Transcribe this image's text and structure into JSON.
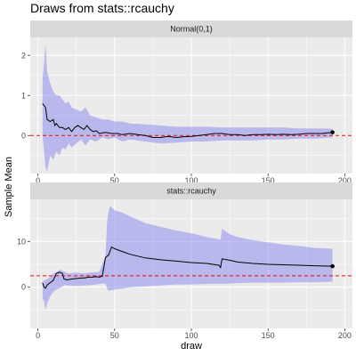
{
  "chart_data": {
    "type": "line",
    "title": "Draws from stats::rcauchy",
    "xlabel": "draw",
    "ylabel": "Sample Mean",
    "xlim": [
      -5,
      205
    ],
    "xticks": [
      0,
      50,
      100,
      150,
      200
    ],
    "colors": {
      "band": "#7b7bef",
      "line": "#000000",
      "reference": "#ff0000",
      "panel": "#ebebeb",
      "grid": "#ffffff",
      "strip": "#d9d9d9"
    },
    "panels": [
      {
        "strip": "Normal(0,1)",
        "ylim": [
          -0.95,
          2.45
        ],
        "yticks": [
          0,
          1,
          2
        ],
        "reference_y": 0,
        "band_upper": [
          [
            3,
            1.4
          ],
          [
            4,
            1.8
          ],
          [
            5,
            2.3
          ],
          [
            6,
            1.6
          ],
          [
            8,
            1.3
          ],
          [
            10,
            1.1
          ],
          [
            12,
            1.0
          ],
          [
            14,
            1.0
          ],
          [
            16,
            0.9
          ],
          [
            18,
            0.8
          ],
          [
            20,
            0.85
          ],
          [
            22,
            0.7
          ],
          [
            25,
            0.65
          ],
          [
            28,
            0.6
          ],
          [
            31,
            0.7
          ],
          [
            34,
            0.5
          ],
          [
            38,
            0.45
          ],
          [
            42,
            0.4
          ],
          [
            46,
            0.4
          ],
          [
            50,
            0.35
          ],
          [
            55,
            0.35
          ],
          [
            60,
            0.3
          ],
          [
            70,
            0.28
          ],
          [
            80,
            0.25
          ],
          [
            90,
            0.22
          ],
          [
            100,
            0.22
          ],
          [
            110,
            0.22
          ],
          [
            120,
            0.2
          ],
          [
            130,
            0.2
          ],
          [
            140,
            0.2
          ],
          [
            150,
            0.2
          ],
          [
            160,
            0.2
          ],
          [
            170,
            0.18
          ],
          [
            180,
            0.18
          ],
          [
            192,
            0.17
          ]
        ],
        "band_lower": [
          [
            3,
            0.0
          ],
          [
            4,
            -0.4
          ],
          [
            5,
            -0.8
          ],
          [
            6,
            -0.9
          ],
          [
            8,
            -0.5
          ],
          [
            10,
            -0.6
          ],
          [
            12,
            -0.4
          ],
          [
            14,
            -0.5
          ],
          [
            16,
            -0.3
          ],
          [
            18,
            -0.35
          ],
          [
            20,
            -0.2
          ],
          [
            22,
            -0.3
          ],
          [
            25,
            -0.2
          ],
          [
            28,
            -0.1
          ],
          [
            31,
            -0.25
          ],
          [
            34,
            -0.1
          ],
          [
            38,
            -0.15
          ],
          [
            42,
            -0.05
          ],
          [
            46,
            -0.1
          ],
          [
            50,
            -0.05
          ],
          [
            55,
            -0.15
          ],
          [
            60,
            -0.1
          ],
          [
            70,
            -0.15
          ],
          [
            80,
            -0.2
          ],
          [
            90,
            -0.18
          ],
          [
            100,
            -0.15
          ],
          [
            110,
            -0.15
          ],
          [
            120,
            -0.12
          ],
          [
            130,
            -0.12
          ],
          [
            140,
            -0.12
          ],
          [
            150,
            -0.1
          ],
          [
            160,
            -0.1
          ],
          [
            170,
            -0.08
          ],
          [
            180,
            -0.08
          ],
          [
            192,
            -0.05
          ]
        ],
        "mean_line": [
          [
            3,
            0.8
          ],
          [
            4,
            0.75
          ],
          [
            5,
            0.7
          ],
          [
            6,
            0.4
          ],
          [
            8,
            0.35
          ],
          [
            10,
            0.4
          ],
          [
            11,
            0.25
          ],
          [
            12,
            0.3
          ],
          [
            14,
            0.2
          ],
          [
            16,
            0.2
          ],
          [
            18,
            0.15
          ],
          [
            20,
            0.2
          ],
          [
            22,
            0.1
          ],
          [
            24,
            0.2
          ],
          [
            26,
            0.25
          ],
          [
            28,
            0.2
          ],
          [
            30,
            0.15
          ],
          [
            32,
            0.25
          ],
          [
            34,
            0.15
          ],
          [
            36,
            0.1
          ],
          [
            38,
            0.12
          ],
          [
            40,
            0.05
          ],
          [
            44,
            0.08
          ],
          [
            48,
            0.05
          ],
          [
            52,
            0.05
          ],
          [
            55,
            0.02
          ],
          [
            60,
            0.05
          ],
          [
            65,
            0.02
          ],
          [
            70,
            0.0
          ],
          [
            75,
            -0.05
          ],
          [
            80,
            -0.05
          ],
          [
            85,
            -0.02
          ],
          [
            90,
            -0.05
          ],
          [
            95,
            -0.03
          ],
          [
            100,
            -0.02
          ],
          [
            105,
            0.0
          ],
          [
            110,
            0.02
          ],
          [
            115,
            0.05
          ],
          [
            120,
            0.05
          ],
          [
            125,
            0.02
          ],
          [
            130,
            0.02
          ],
          [
            135,
            0.0
          ],
          [
            140,
            0.02
          ],
          [
            145,
            0.02
          ],
          [
            150,
            0.03
          ],
          [
            155,
            0.02
          ],
          [
            160,
            0.03
          ],
          [
            165,
            0.02
          ],
          [
            170,
            0.03
          ],
          [
            175,
            0.05
          ],
          [
            180,
            0.05
          ],
          [
            185,
            0.05
          ],
          [
            192,
            0.08
          ]
        ],
        "end_point": [
          192,
          0.08
        ]
      },
      {
        "strip": "stats::rcauchy",
        "ylim": [
          -9,
          19.2
        ],
        "yticks": [
          0,
          10
        ],
        "reference_y": 2.5,
        "band_upper": [
          [
            3,
            0.8
          ],
          [
            4,
            1.5
          ],
          [
            6,
            1.8
          ],
          [
            8,
            2.2
          ],
          [
            10,
            3.0
          ],
          [
            12,
            3.3
          ],
          [
            14,
            3.8
          ],
          [
            16,
            3.6
          ],
          [
            18,
            3.3
          ],
          [
            20,
            3.0
          ],
          [
            25,
            3.2
          ],
          [
            30,
            3.0
          ],
          [
            35,
            3.2
          ],
          [
            40,
            3.4
          ],
          [
            42,
            5.2
          ],
          [
            44,
            6.5
          ],
          [
            45,
            14
          ],
          [
            46,
            16.5
          ],
          [
            47,
            17.8
          ],
          [
            50,
            16.8
          ],
          [
            55,
            16.3
          ],
          [
            60,
            15.5
          ],
          [
            70,
            14.0
          ],
          [
            80,
            13.2
          ],
          [
            90,
            12.4
          ],
          [
            100,
            11.8
          ],
          [
            110,
            11.0
          ],
          [
            119,
            10.4
          ],
          [
            120,
            12.8
          ],
          [
            125,
            11.6
          ],
          [
            130,
            11.0
          ],
          [
            140,
            10.3
          ],
          [
            150,
            9.8
          ],
          [
            160,
            9.3
          ],
          [
            170,
            9.0
          ],
          [
            180,
            8.6
          ],
          [
            192,
            8.4
          ]
        ],
        "band_lower": [
          [
            3,
            -2.5
          ],
          [
            4,
            -3.0
          ],
          [
            5,
            -5.0
          ],
          [
            6,
            -3.5
          ],
          [
            8,
            -2.0
          ],
          [
            10,
            -1.0
          ],
          [
            12,
            -0.5
          ],
          [
            14,
            -0.2
          ],
          [
            16,
            0.2
          ],
          [
            18,
            0.5
          ],
          [
            20,
            0.4
          ],
          [
            25,
            0.3
          ],
          [
            30,
            0.4
          ],
          [
            35,
            0.5
          ],
          [
            40,
            0.7
          ],
          [
            42,
            0.8
          ],
          [
            44,
            0.8
          ],
          [
            45,
            -0.2
          ],
          [
            46,
            -0.8
          ],
          [
            50,
            -0.5
          ],
          [
            55,
            -0.3
          ],
          [
            60,
            0.0
          ],
          [
            70,
            0.2
          ],
          [
            80,
            0.4
          ],
          [
            90,
            0.6
          ],
          [
            100,
            0.6
          ],
          [
            110,
            0.7
          ],
          [
            119,
            0.8
          ],
          [
            120,
            0.7
          ],
          [
            125,
            0.8
          ],
          [
            130,
            0.9
          ],
          [
            140,
            1.0
          ],
          [
            150,
            1.0
          ],
          [
            160,
            1.0
          ],
          [
            170,
            1.1
          ],
          [
            180,
            1.1
          ],
          [
            192,
            1.2
          ]
        ],
        "mean_line": [
          [
            3,
            1.0
          ],
          [
            4,
            0.0
          ],
          [
            5,
            -0.2
          ],
          [
            6,
            0.5
          ],
          [
            8,
            1.0
          ],
          [
            10,
            1.5
          ],
          [
            12,
            3.0
          ],
          [
            14,
            3.3
          ],
          [
            16,
            3.0
          ],
          [
            17,
            1.8
          ],
          [
            19,
            1.6
          ],
          [
            22,
            1.8
          ],
          [
            25,
            1.9
          ],
          [
            28,
            2.0
          ],
          [
            30,
            2.0
          ],
          [
            33,
            2.2
          ],
          [
            35,
            2.2
          ],
          [
            38,
            2.3
          ],
          [
            40,
            2.2
          ],
          [
            42,
            2.4
          ],
          [
            44,
            6.5
          ],
          [
            46,
            7.0
          ],
          [
            48,
            8.8
          ],
          [
            50,
            8.4
          ],
          [
            55,
            7.8
          ],
          [
            60,
            7.2
          ],
          [
            65,
            6.8
          ],
          [
            70,
            6.4
          ],
          [
            80,
            6.0
          ],
          [
            90,
            5.7
          ],
          [
            100,
            5.4
          ],
          [
            110,
            5.2
          ],
          [
            118,
            4.8
          ],
          [
            119,
            4.3
          ],
          [
            120,
            6.2
          ],
          [
            125,
            5.9
          ],
          [
            130,
            5.5
          ],
          [
            140,
            5.2
          ],
          [
            150,
            5.0
          ],
          [
            160,
            4.9
          ],
          [
            170,
            4.8
          ],
          [
            180,
            4.7
          ],
          [
            192,
            4.6
          ]
        ],
        "end_point": [
          192,
          4.6
        ]
      }
    ]
  }
}
